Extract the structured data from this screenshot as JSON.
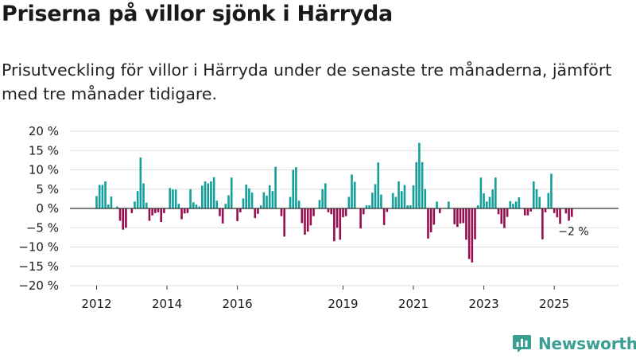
{
  "title": "Priserna på villor sjönk i Härryda",
  "subtitle": "Prisutveckling för villor i Härryda under de senaste tre månaderna, jämfört med tre månader tidigare.",
  "brand": {
    "name": "Newsworthy",
    "icon": "bar-chart-logo-icon"
  },
  "colors": {
    "positive": "#139f9b",
    "negative": "#980c50",
    "grid": "#dddddd",
    "zero": "#333333",
    "brand": "#3a9e93"
  },
  "chart_data": {
    "type": "bar",
    "ylim": [
      -20,
      20
    ],
    "yticks": [
      20,
      15,
      10,
      5,
      0,
      -5,
      -10,
      -15,
      -20
    ],
    "ytick_labels": [
      "20 %",
      "15 %",
      "10 %",
      "5 %",
      "0 %",
      "−5 %",
      "−10 %",
      "−15 %",
      "−20 %"
    ],
    "x_start_month": "2012-01",
    "xticks": [
      {
        "label": "2012",
        "month_index": 0
      },
      {
        "label": "2014",
        "month_index": 24
      },
      {
        "label": "2016",
        "month_index": 48
      },
      {
        "label": "2019",
        "month_index": 84
      },
      {
        "label": "2021",
        "month_index": 108
      },
      {
        "label": "2023",
        "month_index": 132
      },
      {
        "label": "2025",
        "month_index": 156
      }
    ],
    "values": [
      3.2,
      6.1,
      6.1,
      7.0,
      1.0,
      3.1,
      0.0,
      0.5,
      -3.2,
      -5.5,
      -5.0,
      0.0,
      -1.2,
      1.8,
      4.5,
      13.2,
      6.5,
      1.5,
      -3.2,
      -1.8,
      -1.2,
      -1.0,
      -3.5,
      -1.2,
      0.0,
      5.3,
      4.9,
      4.9,
      1.2,
      -2.8,
      -1.3,
      -1.2,
      5.0,
      1.6,
      1.0,
      0.5,
      5.9,
      7.0,
      6.5,
      7.0,
      8.1,
      2.0,
      -2.0,
      -3.9,
      1.2,
      3.4,
      8.0,
      0.0,
      -3.3,
      -1.0,
      2.6,
      6.2,
      5.2,
      4.1,
      -2.5,
      -1.4,
      0.8,
      4.2,
      3.3,
      6.0,
      4.5,
      10.8,
      0.0,
      -2.0,
      -7.3,
      0.0,
      3.0,
      10.0,
      10.7,
      2.0,
      -3.8,
      -6.8,
      -6.0,
      -4.4,
      -2.0,
      0.0,
      2.2,
      5.0,
      6.5,
      -1.0,
      -1.5,
      -8.5,
      -5.0,
      -8.1,
      -2.3,
      -2.0,
      3.0,
      8.8,
      6.9,
      0.0,
      -5.2,
      -1.5,
      0.8,
      0.8,
      4.1,
      6.3,
      11.9,
      3.6,
      -4.3,
      -0.9,
      0.0,
      4.0,
      3.0,
      7.0,
      4.5,
      6.1,
      0.8,
      0.8,
      6.0,
      12.0,
      17.0,
      12.0,
      5.0,
      -7.8,
      -6.2,
      -4.2,
      1.8,
      -1.2,
      0.0,
      0.0,
      1.8,
      0.0,
      -4.1,
      -4.8,
      -3.9,
      -3.8,
      -8.1,
      -13.1,
      -14.0,
      -8.0,
      0.8,
      8.0,
      3.9,
      1.8,
      3.0,
      4.9,
      8.0,
      -1.5,
      -4.0,
      -5.1,
      -2.2,
      1.9,
      1.2,
      1.8,
      2.9,
      0.0,
      -1.8,
      -1.8,
      -0.8,
      7.0,
      5.0,
      3.0,
      -8.0,
      -1.0,
      4.0,
      9.0,
      -1.2,
      -2.3,
      -4.0,
      0.0,
      -1.3,
      -3.2,
      -2.2
    ],
    "end_label": "−2 %"
  }
}
